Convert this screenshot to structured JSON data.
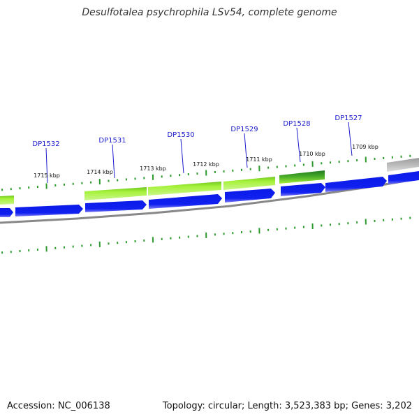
{
  "title": "Desulfotalea psychrophila LSv54, complete genome",
  "footer": {
    "accession": "Accession: NC_006138",
    "summary": "Topology: circular; Length: 3,523,383 bp; Genes: 3,202"
  },
  "colors": {
    "cds_forward_dark": "#0a1ae6",
    "cds_forward_light": "#6f6ff2",
    "gene_lime": "#a6f23a",
    "gene_lime_dark": "#6ec71f",
    "gene_green_dark": "#1f7a1f",
    "gene_grey": "#bdbdbd",
    "backbone": "#888888",
    "tick": "#2e9a2e",
    "label": "#1a1acc"
  },
  "ruler_labels": [
    "1715 kbp",
    "1714 kbp",
    "1713 kbp",
    "1712 kbp",
    "1711 kbp",
    "1710 kbp",
    "1709 kbp"
  ],
  "gene_labels": [
    "DP1532",
    "DP1531",
    "DP1530",
    "DP1529",
    "DP1528",
    "DP1527"
  ]
}
